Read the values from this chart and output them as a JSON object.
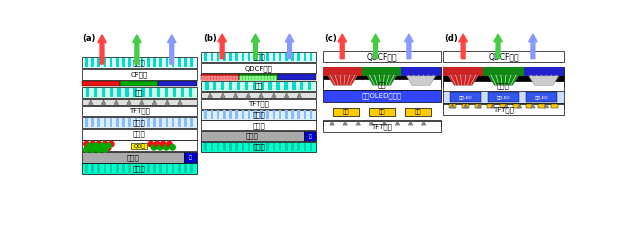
{
  "bg_color": "#ffffff",
  "panel_labels": [
    "(a)",
    "(b)",
    "(c)",
    "(d)"
  ],
  "arrow_red": "#ff4444",
  "arrow_green": "#44cc44",
  "arrow_blue": "#8899ff",
  "cyan_stripe_color": "#00ddcc",
  "cyan_bg": "#e0ffff",
  "lc_stripe_color": "#00ddcc",
  "lc_bg": "#ccffee",
  "pol_stripe_color": "#88bbff",
  "pol_bg": "#ddeeff",
  "reflect_stripe": "#00ccaa",
  "reflect_bg": "#00ffcc",
  "gray_layer": "#aaaaaa",
  "white_layer": "#ffffff",
  "red_cf": "#ee1111",
  "green_cf": "#00aa00",
  "blue_cf": "#2222cc",
  "yellow_qd": "#ffee00",
  "blue_side": "#0000cc",
  "qdcf_red_bg": "#cc2222",
  "qdcf_green_bg": "#118811",
  "qdcf_blue_bg": "#2222cc",
  "oled_blue": "#3344ff",
  "cathode_yellow": "#ffcc00",
  "led_blue": "#3355ee",
  "tft_bg": "#e0e0e0"
}
